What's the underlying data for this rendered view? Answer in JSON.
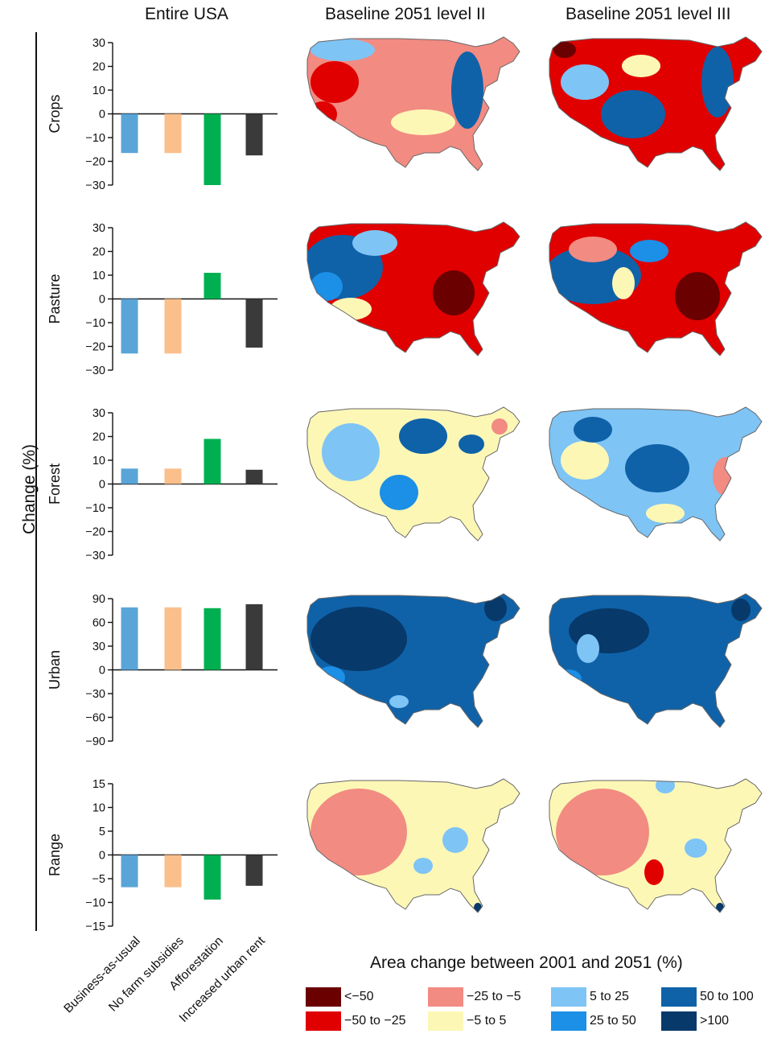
{
  "titles": {
    "entire": "Entire USA",
    "level2": "Baseline 2051 level II",
    "level3": "Baseline 2051 level III"
  },
  "ylabel": "Change (%)",
  "chart_data": {
    "type": "bar",
    "categories": [
      "Business-as-usual",
      "No farm subsidies",
      "Afforestation",
      "Increased urban rent"
    ],
    "bar_colors": [
      "#5aa5d8",
      "#fbbf8c",
      "#00b050",
      "#3a3a3a"
    ],
    "panels": [
      {
        "name": "Crops",
        "ylim": [
          -30,
          30
        ],
        "ticks": [
          30,
          20,
          10,
          0,
          -10,
          -20,
          -30
        ],
        "values": [
          -16.5,
          -16.5,
          -30,
          -17.5
        ]
      },
      {
        "name": "Pasture",
        "ylim": [
          -30,
          30
        ],
        "ticks": [
          30,
          20,
          10,
          0,
          -10,
          -20,
          -30
        ],
        "values": [
          -23,
          -23,
          11,
          -20.5
        ]
      },
      {
        "name": "Forest",
        "ylim": [
          -30,
          30
        ],
        "ticks": [
          30,
          20,
          10,
          0,
          -10,
          -20,
          -30
        ],
        "values": [
          6.5,
          6.5,
          19,
          6
        ]
      },
      {
        "name": "Urban",
        "ylim": [
          -90,
          90
        ],
        "ticks": [
          90,
          60,
          30,
          0,
          -30,
          -60,
          -90
        ],
        "values": [
          79,
          79,
          78,
          83
        ]
      },
      {
        "name": "Range",
        "ylim": [
          -15,
          15
        ],
        "ticks": [
          15,
          10,
          5,
          0,
          -5,
          -10,
          -15
        ],
        "values": [
          -6.8,
          -6.8,
          -9.4,
          -6.5
        ]
      }
    ]
  },
  "tick_labels": {
    "crops": [
      "30",
      "20",
      "10",
      "0",
      "−10",
      "−20",
      "−30"
    ],
    "pasture": [
      "30",
      "20",
      "10",
      "0",
      "−10",
      "−20",
      "−30"
    ],
    "forest": [
      "30",
      "20",
      "10",
      "0",
      "−10",
      "−20",
      "−30"
    ],
    "urban": [
      "90",
      "60",
      "30",
      "0",
      "−30",
      "−60",
      "−90"
    ],
    "range": [
      "15",
      "10",
      "5",
      "0",
      "−5",
      "−10",
      "−15"
    ]
  },
  "maps": {
    "rows": [
      "Crops",
      "Pasture",
      "Forest",
      "Urban",
      "Range"
    ],
    "palette": {
      "lt_m50": "#6b0000",
      "m50_m25": "#e00000",
      "m25_m5": "#f28b82",
      "m5_5": "#fdf7b6",
      "p5_25": "#7ec4f5",
      "p25_50": "#1c8fe6",
      "p50_100": "#0f62a8",
      "gt_100": "#08396b"
    }
  },
  "legend": {
    "title": "Area change between 2001 and 2051 (%)",
    "items": [
      {
        "label": "<−50",
        "color": "#6b0000"
      },
      {
        "label": "−50 to −25",
        "color": "#e00000"
      },
      {
        "label": "−25 to −5",
        "color": "#f28b82"
      },
      {
        "label": "−5 to 5",
        "color": "#fdf7b6"
      },
      {
        "label": "5 to 25",
        "color": "#7ec4f5"
      },
      {
        "label": "25 to 50",
        "color": "#1c8fe6"
      },
      {
        "label": "50 to 100",
        "color": "#0f62a8"
      },
      {
        "label": ">100",
        "color": "#08396b"
      }
    ]
  }
}
